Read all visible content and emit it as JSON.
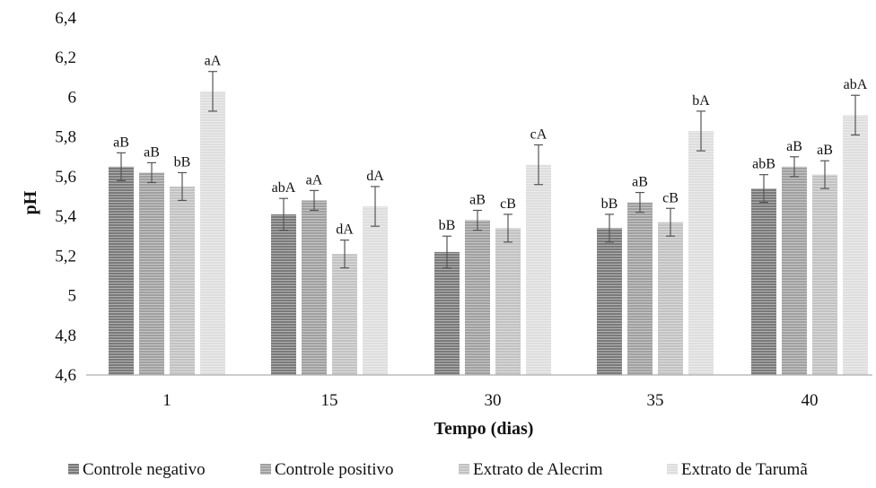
{
  "chart_data": {
    "type": "bar",
    "xlabel": "Tempo (dias)",
    "ylabel": "pH",
    "ylim": [
      4.6,
      6.4
    ],
    "yticks": [
      "4,6",
      "4,8",
      "5",
      "5,2",
      "5,4",
      "5,6",
      "5,8",
      "6",
      "6,2",
      "6,4"
    ],
    "ytick_values": [
      4.6,
      4.8,
      5.0,
      5.2,
      5.4,
      5.6,
      5.8,
      6.0,
      6.2,
      6.4
    ],
    "categories": [
      "1",
      "15",
      "30",
      "35",
      "40"
    ],
    "grid": false,
    "legend_position": "bottom",
    "series": [
      {
        "name": "Controle negativo",
        "color": "#7a7a7a",
        "values": [
          5.65,
          5.41,
          5.22,
          5.34,
          5.54
        ],
        "errors": [
          0.07,
          0.08,
          0.08,
          0.07,
          0.07
        ],
        "labels": [
          "aB",
          "abA",
          "bB",
          "bB",
          "abB"
        ]
      },
      {
        "name": "Controle positivo",
        "color": "#a0a0a0",
        "values": [
          5.62,
          5.48,
          5.38,
          5.47,
          5.65
        ],
        "errors": [
          0.05,
          0.05,
          0.05,
          0.05,
          0.05
        ],
        "labels": [
          "aB",
          "aA",
          "aB",
          "aB",
          "aB"
        ]
      },
      {
        "name": "Extrato de Alecrim",
        "color": "#c2c2c2",
        "values": [
          5.55,
          5.21,
          5.34,
          5.37,
          5.61
        ],
        "errors": [
          0.07,
          0.07,
          0.07,
          0.07,
          0.07
        ],
        "labels": [
          "bB",
          "dA",
          "cB",
          "cB",
          "aB"
        ]
      },
      {
        "name": "Extrato de Tarumã",
        "color": "#dedede",
        "values": [
          6.03,
          5.45,
          5.66,
          5.83,
          5.91
        ],
        "errors": [
          0.1,
          0.1,
          0.1,
          0.1,
          0.1
        ],
        "labels": [
          "aA",
          "dA",
          "cA",
          "bA",
          "abA"
        ]
      }
    ]
  }
}
